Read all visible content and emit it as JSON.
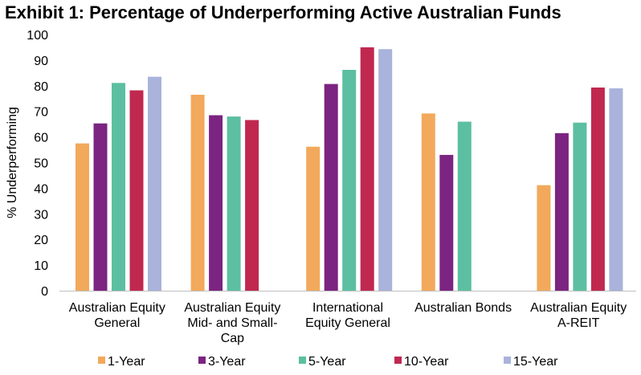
{
  "chart_data": {
    "type": "bar",
    "title": "Exhibit 1: Percentage of Underperforming Active Australian Funds",
    "xlabel": "",
    "ylabel": "% Underperforming",
    "ylim": [
      0,
      100
    ],
    "yticks": [
      0,
      10,
      20,
      30,
      40,
      50,
      60,
      70,
      80,
      90,
      100
    ],
    "grid": false,
    "legend_position": "bottom",
    "categories": [
      [
        "Australian Equity",
        "General"
      ],
      [
        "Australian Equity",
        "Mid- and Small-",
        "Cap"
      ],
      [
        "International",
        "Equity General"
      ],
      [
        "Australian Bonds"
      ],
      [
        "Australian Equity",
        "A-REIT"
      ]
    ],
    "series": [
      {
        "name": "1-Year",
        "color": "#F2A95B",
        "values": [
          57.5,
          76.5,
          56.2,
          69.2,
          41.2
        ]
      },
      {
        "name": "3-Year",
        "color": "#7B2481",
        "values": [
          65.3,
          68.5,
          80.7,
          53.0,
          61.5
        ]
      },
      {
        "name": "5-Year",
        "color": "#5CBFA1",
        "values": [
          81.1,
          68.0,
          86.2,
          66.0,
          65.6
        ]
      },
      {
        "name": "10-Year",
        "color": "#C0284F",
        "values": [
          78.2,
          66.6,
          95.0,
          null,
          79.3
        ]
      },
      {
        "name": "15-Year",
        "color": "#A9B3DB",
        "values": [
          83.5,
          null,
          94.3,
          null,
          79.0
        ]
      }
    ]
  }
}
